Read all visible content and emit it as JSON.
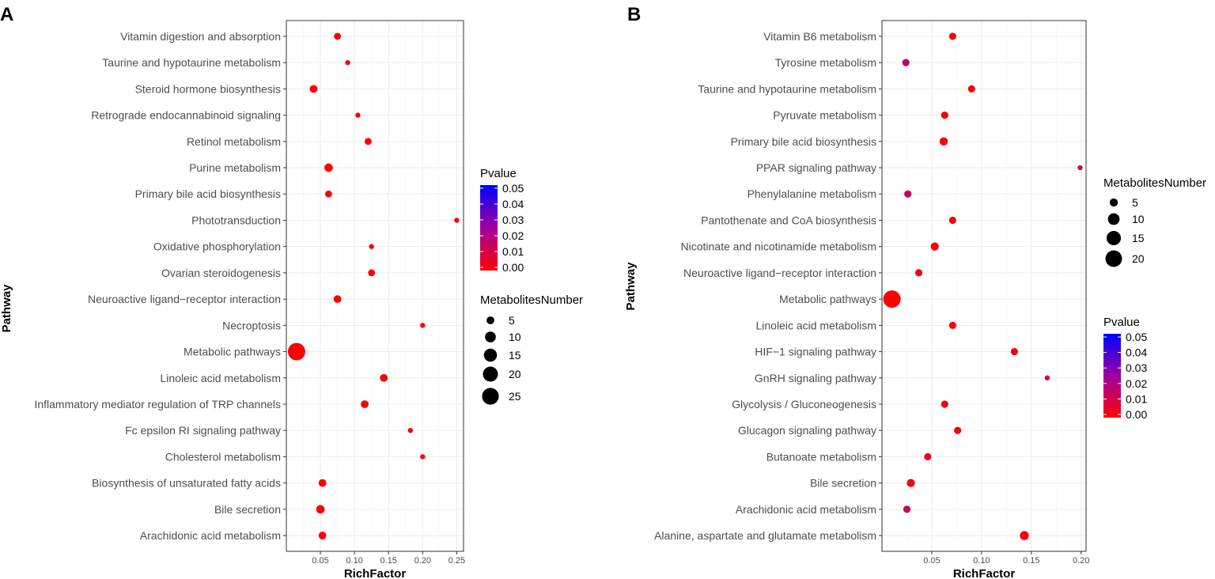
{
  "chart_data": [
    {
      "panel": "A",
      "type": "scatter",
      "xlabel": "RichFactor",
      "ylabel": "Pathway",
      "xlim": [
        0.0,
        0.26
      ],
      "xticks": [
        0.05,
        0.1,
        0.15,
        0.2,
        0.25
      ],
      "xtick_labels": [
        "0.05",
        "0.10",
        "0.15",
        "0.20",
        "0.25"
      ],
      "color_legend": {
        "title": "Pvalue",
        "labels": [
          "0.05",
          "0.04",
          "0.03",
          "0.02",
          "0.01",
          "0.00"
        ],
        "min": 0.0,
        "max": 0.05
      },
      "size_legend": {
        "title": "MetabolitesNumber",
        "labels": [
          "5",
          "10",
          "15",
          "20",
          "25"
        ]
      },
      "points": [
        {
          "pathway": "Vitamin digestion and absorption",
          "x": 0.075,
          "count": 4,
          "pvalue": 0.001
        },
        {
          "pathway": "Taurine and hypotaurine metabolism",
          "x": 0.09,
          "count": 2,
          "pvalue": 0.004
        },
        {
          "pathway": "Steroid hormone biosynthesis",
          "x": 0.04,
          "count": 5,
          "pvalue": 0.001
        },
        {
          "pathway": "Retrograde endocannabinoid signaling",
          "x": 0.105,
          "count": 2,
          "pvalue": 0.002
        },
        {
          "pathway": "Retinol metabolism",
          "x": 0.12,
          "count": 4,
          "pvalue": 0.001
        },
        {
          "pathway": "Purine metabolism",
          "x": 0.062,
          "count": 6,
          "pvalue": 0.0005
        },
        {
          "pathway": "Primary bile acid biosynthesis",
          "x": 0.062,
          "count": 4,
          "pvalue": 0.001
        },
        {
          "pathway": "Phototransduction",
          "x": 0.25,
          "count": 2,
          "pvalue": 0.002
        },
        {
          "pathway": "Oxidative phosphorylation",
          "x": 0.125,
          "count": 2,
          "pvalue": 0.002
        },
        {
          "pathway": "Ovarian steroidogenesis",
          "x": 0.125,
          "count": 4,
          "pvalue": 0.001
        },
        {
          "pathway": "Neuroactive ligand−receptor interaction",
          "x": 0.075,
          "count": 5,
          "pvalue": 0.0005
        },
        {
          "pathway": "Necroptosis",
          "x": 0.2,
          "count": 2,
          "pvalue": 0.002
        },
        {
          "pathway": "Metabolic pathways",
          "x": 0.015,
          "count": 27,
          "pvalue": 0.0002
        },
        {
          "pathway": "Linoleic acid metabolism",
          "x": 0.143,
          "count": 5,
          "pvalue": 0.0005
        },
        {
          "pathway": "Inflammatory mediator regulation of TRP channels",
          "x": 0.115,
          "count": 5,
          "pvalue": 0.0005
        },
        {
          "pathway": "Fc epsilon RI signaling pathway",
          "x": 0.182,
          "count": 2,
          "pvalue": 0.002
        },
        {
          "pathway": "Cholesterol metabolism",
          "x": 0.2,
          "count": 2,
          "pvalue": 0.002
        },
        {
          "pathway": "Biosynthesis of unsaturated fatty acids",
          "x": 0.053,
          "count": 5,
          "pvalue": 0.0005
        },
        {
          "pathway": "Bile secretion",
          "x": 0.05,
          "count": 6,
          "pvalue": 0.0005
        },
        {
          "pathway": "Arachidonic acid metabolism",
          "x": 0.053,
          "count": 5,
          "pvalue": 0.0005
        }
      ]
    },
    {
      "panel": "B",
      "type": "scatter",
      "xlabel": "RichFactor",
      "ylabel": "Pathway",
      "xlim": [
        0.0,
        0.205
      ],
      "xticks": [
        0.05,
        0.1,
        0.15,
        0.2
      ],
      "xtick_labels": [
        "0.05",
        "0.10",
        "0.15",
        "0.20"
      ],
      "color_legend": {
        "title": "Pvalue",
        "labels": [
          "0.05",
          "0.04",
          "0.03",
          "0.02",
          "0.01",
          "0.00"
        ],
        "min": 0.0,
        "max": 0.05
      },
      "size_legend": {
        "title": "MetabolitesNumber",
        "labels": [
          "5",
          "10",
          "15",
          "20"
        ]
      },
      "points": [
        {
          "pathway": "Vitamin B6 metabolism",
          "x": 0.071,
          "count": 4,
          "pvalue": 0.002
        },
        {
          "pathway": "Tyrosine metabolism",
          "x": 0.024,
          "count": 4,
          "pvalue": 0.018
        },
        {
          "pathway": "Taurine and hypotaurine metabolism",
          "x": 0.09,
          "count": 4,
          "pvalue": 0.002
        },
        {
          "pathway": "Pyruvate metabolism",
          "x": 0.063,
          "count": 4,
          "pvalue": 0.002
        },
        {
          "pathway": "Primary bile acid biosynthesis",
          "x": 0.062,
          "count": 5,
          "pvalue": 0.001
        },
        {
          "pathway": "PPAR signaling pathway",
          "x": 0.199,
          "count": 2,
          "pvalue": 0.012
        },
        {
          "pathway": "Phenylalanine metabolism",
          "x": 0.026,
          "count": 4,
          "pvalue": 0.016
        },
        {
          "pathway": "Pantothenate and CoA biosynthesis",
          "x": 0.071,
          "count": 4,
          "pvalue": 0.003
        },
        {
          "pathway": "Nicotinate and nicotinamide metabolism",
          "x": 0.053,
          "count": 5,
          "pvalue": 0.002
        },
        {
          "pathway": "Neuroactive ligand−receptor interaction",
          "x": 0.037,
          "count": 4,
          "pvalue": 0.006
        },
        {
          "pathway": "Metabolic pathways",
          "x": 0.01,
          "count": 22,
          "pvalue": 0.0005
        },
        {
          "pathway": "Linoleic acid metabolism",
          "x": 0.071,
          "count": 4,
          "pvalue": 0.002
        },
        {
          "pathway": "HIF−1 signaling pathway",
          "x": 0.133,
          "count": 4,
          "pvalue": 0.003
        },
        {
          "pathway": "GnRH signaling pathway",
          "x": 0.166,
          "count": 2,
          "pvalue": 0.01
        },
        {
          "pathway": "Glycolysis / Gluconeogenesis",
          "x": 0.063,
          "count": 4,
          "pvalue": 0.002
        },
        {
          "pathway": "Glucagon signaling pathway",
          "x": 0.076,
          "count": 4,
          "pvalue": 0.002
        },
        {
          "pathway": "Butanoate metabolism",
          "x": 0.046,
          "count": 4,
          "pvalue": 0.004
        },
        {
          "pathway": "Bile secretion",
          "x": 0.029,
          "count": 5,
          "pvalue": 0.002
        },
        {
          "pathway": "Arachidonic acid metabolism",
          "x": 0.025,
          "count": 4,
          "pvalue": 0.014
        },
        {
          "pathway": "Alanine, aspartate and glutamate metabolism",
          "x": 0.143,
          "count": 6,
          "pvalue": 0.001
        }
      ]
    }
  ]
}
